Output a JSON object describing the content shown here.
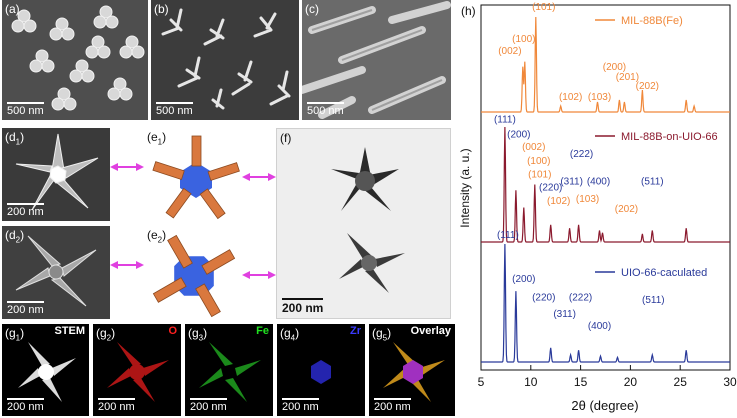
{
  "panels": {
    "a": {
      "label": "(a)",
      "scale": "500 nm"
    },
    "b": {
      "label": "(b)",
      "scale": "500 nm"
    },
    "c": {
      "label": "(c)",
      "scale": "500 nm"
    },
    "d1": {
      "label": "(d",
      "sub": "1",
      "scale": "200 nm"
    },
    "d2": {
      "label": "(d",
      "sub": "2",
      "scale": "200 nm"
    },
    "e1": {
      "label": "(e",
      "sub": "1"
    },
    "e2": {
      "label": "(e",
      "sub": "2"
    },
    "f": {
      "label": "(f)",
      "scale": "200 nm"
    },
    "g1": {
      "label": "(g",
      "sub": "1",
      "title": "STEM",
      "scale": "200 nm"
    },
    "g2": {
      "label": "(g",
      "sub": "2",
      "title": "O",
      "scale": "200 nm",
      "color": "#ff2020"
    },
    "g3": {
      "label": "(g",
      "sub": "3",
      "title": "Fe",
      "scale": "200 nm",
      "color": "#20e020"
    },
    "g4": {
      "label": "(g",
      "sub": "4",
      "title": "Zr",
      "scale": "200 nm",
      "color": "#3a3aff"
    },
    "g5": {
      "label": "(g",
      "sub": "5",
      "title": "Overlay",
      "scale": "200 nm"
    },
    "h": {
      "label": "(h)"
    }
  },
  "colors": {
    "mil88b": "#f0883a",
    "mil_on_uio": "#8b1a2e",
    "uio66": "#2a3a9a",
    "arrow": "#e040e0"
  },
  "chart_data": {
    "type": "line",
    "xlabel": "2θ (degree)",
    "ylabel": "Intensity (a. u.)",
    "xlim": [
      5,
      30
    ],
    "xticks": [
      5,
      10,
      15,
      20,
      25,
      30
    ],
    "series": [
      {
        "name": "MIL-88B(Fe)",
        "baseline": 0.0,
        "peaks": [
          [
            9.2,
            0.45
          ],
          [
            9.4,
            0.5
          ],
          [
            10.5,
            0.95
          ],
          [
            13.0,
            0.06
          ],
          [
            16.7,
            0.1
          ],
          [
            18.9,
            0.12
          ],
          [
            19.4,
            0.1
          ],
          [
            21.2,
            0.22
          ],
          [
            25.6,
            0.12
          ],
          [
            26.4,
            0.06
          ]
        ],
        "labels": [
          {
            "text": "(002)",
            "x": 7.9,
            "y": 0.58
          },
          {
            "text": "(100)",
            "x": 9.3,
            "y": 0.7
          },
          {
            "text": "(101)",
            "x": 11.3,
            "y": 1.02
          },
          {
            "text": "(102)",
            "x": 14.0,
            "y": 0.12
          },
          {
            "text": "(103)",
            "x": 16.9,
            "y": 0.12
          },
          {
            "text": "(200)",
            "x": 18.4,
            "y": 0.42
          },
          {
            "text": "(201)",
            "x": 19.7,
            "y": 0.32
          },
          {
            "text": "(202)",
            "x": 21.7,
            "y": 0.23
          }
        ]
      },
      {
        "name": "MIL-88B-on-UIO-66",
        "baseline": 0.0,
        "peaks": [
          [
            7.4,
            1.0
          ],
          [
            8.5,
            0.45
          ],
          [
            9.3,
            0.3
          ],
          [
            10.4,
            0.5
          ],
          [
            12.0,
            0.15
          ],
          [
            13.9,
            0.12
          ],
          [
            14.8,
            0.15
          ],
          [
            16.9,
            0.1
          ],
          [
            17.2,
            0.08
          ],
          [
            21.2,
            0.07
          ],
          [
            22.2,
            0.1
          ],
          [
            25.6,
            0.12
          ]
        ],
        "labels": [
          {
            "text": "(111)",
            "x": 7.4,
            "y": 1.04,
            "color": "uio"
          },
          {
            "text": "(200)",
            "x": 8.8,
            "y": 0.91,
            "color": "uio"
          },
          {
            "text": "(002)",
            "x": 10.3,
            "y": 0.8,
            "color": "mil"
          },
          {
            "text": "(100)",
            "x": 10.8,
            "y": 0.68,
            "color": "mil"
          },
          {
            "text": "(101)",
            "x": 10.9,
            "y": 0.56,
            "color": "mil"
          },
          {
            "text": "(220)",
            "x": 12.0,
            "y": 0.45,
            "color": "uio"
          },
          {
            "text": "(102)",
            "x": 12.8,
            "y": 0.33,
            "color": "mil"
          },
          {
            "text": "(311)",
            "x": 14.1,
            "y": 0.5,
            "color": "uio"
          },
          {
            "text": "(222)",
            "x": 15.1,
            "y": 0.74,
            "color": "uio"
          },
          {
            "text": "(400)",
            "x": 16.8,
            "y": 0.5,
            "color": "uio"
          },
          {
            "text": "(103)",
            "x": 15.7,
            "y": 0.35,
            "color": "mil"
          },
          {
            "text": "(202)",
            "x": 19.6,
            "y": 0.26,
            "color": "mil"
          },
          {
            "text": "(511)",
            "x": 22.2,
            "y": 0.5,
            "color": "uio"
          }
        ]
      },
      {
        "name": "UIO-66-caculated",
        "baseline": 0.0,
        "peaks": [
          [
            7.4,
            1.0
          ],
          [
            8.5,
            0.6
          ],
          [
            12.0,
            0.12
          ],
          [
            14.0,
            0.06
          ],
          [
            14.8,
            0.1
          ],
          [
            17.0,
            0.05
          ],
          [
            18.7,
            0.04
          ],
          [
            22.2,
            0.06
          ],
          [
            25.6,
            0.1
          ]
        ],
        "labels": [
          {
            "text": "(111)",
            "x": 7.7,
            "y": 1.05
          },
          {
            "text": "(200)",
            "x": 9.3,
            "y": 0.68
          },
          {
            "text": "(220)",
            "x": 11.3,
            "y": 0.52
          },
          {
            "text": "(311)",
            "x": 13.4,
            "y": 0.38
          },
          {
            "text": "(222)",
            "x": 15.0,
            "y": 0.52
          },
          {
            "text": "(400)",
            "x": 16.9,
            "y": 0.28
          },
          {
            "text": "(511)",
            "x": 22.3,
            "y": 0.5
          }
        ]
      }
    ]
  }
}
